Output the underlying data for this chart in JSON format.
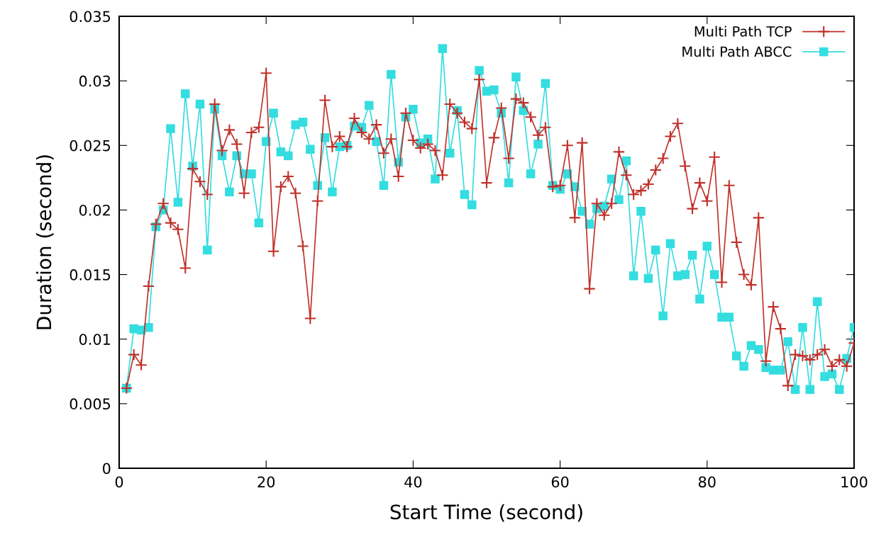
{
  "chart_data": {
    "type": "line",
    "xlabel": "Start Time (second)",
    "ylabel": "Duration (second)",
    "xlim": [
      0,
      100
    ],
    "xticks": [
      0,
      20,
      40,
      60,
      80,
      100
    ],
    "ylim": [
      0,
      0.035
    ],
    "yticks": [
      0,
      0.005,
      0.01,
      0.015,
      0.02,
      0.025,
      0.03,
      0.035
    ],
    "grid": false,
    "legend": "top right",
    "x": [
      1,
      2,
      3,
      4,
      5,
      6,
      7,
      8,
      9,
      10,
      11,
      12,
      13,
      14,
      15,
      16,
      17,
      18,
      19,
      20,
      21,
      22,
      23,
      24,
      25,
      26,
      27,
      28,
      29,
      30,
      31,
      32,
      33,
      34,
      35,
      36,
      37,
      38,
      39,
      40,
      41,
      42,
      43,
      44,
      45,
      46,
      47,
      48,
      49,
      50,
      51,
      52,
      53,
      54,
      55,
      56,
      57,
      58,
      59,
      60,
      61,
      62,
      63,
      64,
      65,
      66,
      67,
      68,
      69,
      70,
      71,
      72,
      73,
      74,
      75,
      76,
      77,
      78,
      79,
      80,
      81,
      82,
      83,
      84,
      85,
      86,
      87,
      88,
      89,
      90,
      91,
      92,
      93,
      94,
      95,
      96,
      97,
      98,
      99,
      100
    ],
    "series": [
      {
        "name": "Multi Path TCP",
        "color": "#c0302a",
        "marker": "cross",
        "values": [
          0.0062,
          0.0088,
          0.008,
          0.0141,
          0.0189,
          0.0205,
          0.019,
          0.0185,
          0.0155,
          0.0232,
          0.0222,
          0.0212,
          0.0282,
          0.0246,
          0.0262,
          0.0251,
          0.0213,
          0.026,
          0.0264,
          0.0306,
          0.0168,
          0.0218,
          0.0226,
          0.0213,
          0.0172,
          0.0116,
          0.0207,
          0.0285,
          0.0249,
          0.0257,
          0.0249,
          0.0271,
          0.026,
          0.0255,
          0.0266,
          0.0244,
          0.0255,
          0.0226,
          0.0275,
          0.0254,
          0.0248,
          0.0251,
          0.0246,
          0.0227,
          0.0282,
          0.0275,
          0.0268,
          0.0263,
          0.0301,
          0.0221,
          0.0256,
          0.0279,
          0.024,
          0.0286,
          0.0283,
          0.0272,
          0.0258,
          0.0264,
          0.0218,
          0.0219,
          0.025,
          0.0194,
          0.0252,
          0.0139,
          0.0205,
          0.0196,
          0.0205,
          0.0245,
          0.0227,
          0.0212,
          0.0215,
          0.022,
          0.0231,
          0.024,
          0.0257,
          0.0267,
          0.0234,
          0.0201,
          0.0221,
          0.0207,
          0.0241,
          0.0144,
          0.0219,
          0.0175,
          0.015,
          0.0142,
          0.0194,
          0.0083,
          0.0125,
          0.0108,
          0.0064,
          0.0088,
          0.0087,
          0.0084,
          0.0088,
          0.0092,
          0.0079,
          0.0084,
          0.0079,
          0.0097
        ]
      },
      {
        "name": "Multi Path ABCC",
        "color": "#33dde0",
        "marker": "square",
        "values": [
          0.0062,
          0.0108,
          0.0107,
          0.0109,
          0.0187,
          0.02,
          0.0263,
          0.0206,
          0.029,
          0.0234,
          0.0282,
          0.0169,
          0.0278,
          0.0242,
          0.0214,
          0.0242,
          0.0228,
          0.0228,
          0.019,
          0.0253,
          0.0275,
          0.0245,
          0.0242,
          0.0266,
          0.0268,
          0.0247,
          0.0219,
          0.0256,
          0.0214,
          0.0249,
          0.025,
          0.0265,
          0.0264,
          0.0281,
          0.0253,
          0.0219,
          0.0305,
          0.0237,
          0.0272,
          0.0278,
          0.0252,
          0.0255,
          0.0224,
          0.0325,
          0.0244,
          0.0277,
          0.0212,
          0.0204,
          0.0308,
          0.0292,
          0.0293,
          0.0275,
          0.0221,
          0.0303,
          0.0277,
          0.0228,
          0.0251,
          0.0298,
          0.0219,
          0.0216,
          0.0228,
          0.0218,
          0.0199,
          0.0189,
          0.0201,
          0.0203,
          0.0224,
          0.0208,
          0.0238,
          0.0149,
          0.0199,
          0.0147,
          0.0169,
          0.0118,
          0.0174,
          0.0149,
          0.015,
          0.0165,
          0.0131,
          0.0172,
          0.015,
          0.0117,
          0.0117,
          0.0087,
          0.0079,
          0.0095,
          0.0092,
          0.0078,
          0.0076,
          0.0076,
          0.0098,
          0.0061,
          0.0109,
          0.0061,
          0.0129,
          0.0071,
          0.0073,
          0.0061,
          0.0085,
          0.0109
        ]
      }
    ]
  }
}
